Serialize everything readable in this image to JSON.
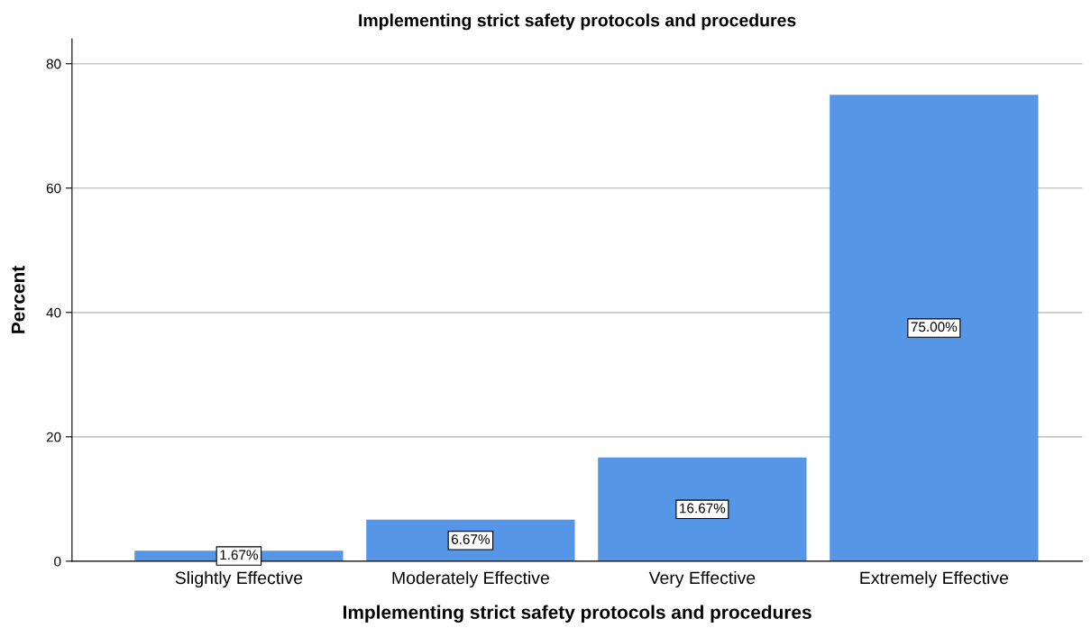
{
  "chart_data": {
    "type": "bar",
    "title": "Implementing strict safety protocols and procedures",
    "xlabel": "Implementing strict safety protocols and procedures",
    "ylabel": "Percent",
    "categories": [
      "Slightly Effective",
      "Moderately Effective",
      "Very Effective",
      "Extremely Effective"
    ],
    "values": [
      1.67,
      6.67,
      16.67,
      75.0
    ],
    "value_labels": [
      "1.67%",
      "6.67%",
      "16.67%",
      "75.00%"
    ],
    "color": "#5596e6",
    "ylim": [
      0,
      84
    ],
    "yticks": [
      0,
      20,
      40,
      60,
      80
    ],
    "grid": "y"
  }
}
